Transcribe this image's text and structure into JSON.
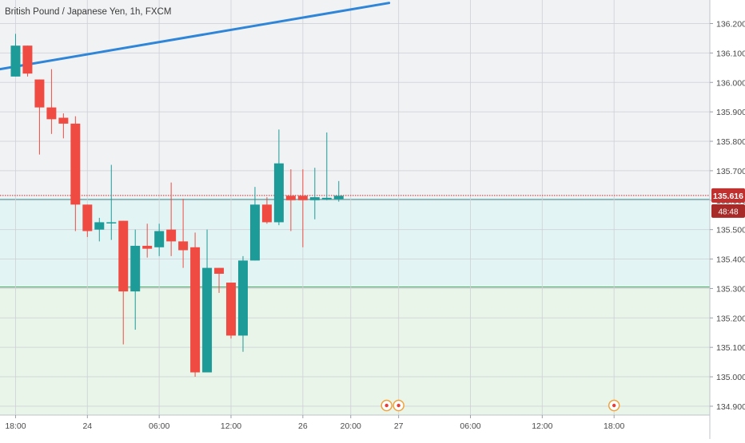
{
  "title": "British Pound / Japanese Yen, 1h, FXCM",
  "chart_data": {
    "type": "candlestick",
    "title": "British Pound / Japanese Yen, 1h, FXCM",
    "ylim": [
      134.87,
      136.28
    ],
    "x_range": [
      -1.3,
      58
    ],
    "grid": true,
    "y_ticks": [
      "136.200",
      "136.100",
      "136.000",
      "135.900",
      "135.800",
      "135.700",
      "135.600",
      "135.500",
      "135.400",
      "135.300",
      "135.200",
      "135.100",
      "135.000",
      "134.900"
    ],
    "y_tick_values": [
      136.2,
      136.1,
      136.0,
      135.9,
      135.8,
      135.7,
      135.6,
      135.5,
      135.4,
      135.3,
      135.2,
      135.1,
      135.0,
      134.9
    ],
    "x_ticks": [
      {
        "label": "18:00",
        "index": 0
      },
      {
        "label": "24",
        "index": 6
      },
      {
        "label": "06:00",
        "index": 12
      },
      {
        "label": "12:00",
        "index": 18
      },
      {
        "label": "26",
        "index": 24
      },
      {
        "label": "20:00",
        "index": 28
      },
      {
        "label": "27",
        "index": 32
      },
      {
        "label": "06:00",
        "index": 38
      },
      {
        "label": "12:00",
        "index": 44
      },
      {
        "label": "18:00",
        "index": 50
      }
    ],
    "candles": [
      {
        "o": 136.02,
        "h": 136.165,
        "l": 136.02,
        "c": 136.125
      },
      {
        "o": 136.125,
        "h": 136.125,
        "l": 136.02,
        "c": 136.03
      },
      {
        "o": 136.01,
        "h": 136.01,
        "l": 135.755,
        "c": 135.915
      },
      {
        "o": 135.915,
        "h": 136.045,
        "l": 135.825,
        "c": 135.875
      },
      {
        "o": 135.88,
        "h": 135.895,
        "l": 135.81,
        "c": 135.86
      },
      {
        "o": 135.86,
        "h": 135.885,
        "l": 135.495,
        "c": 135.585
      },
      {
        "o": 135.585,
        "h": 135.585,
        "l": 135.475,
        "c": 135.495
      },
      {
        "o": 135.5,
        "h": 135.54,
        "l": 135.46,
        "c": 135.525
      },
      {
        "o": 135.525,
        "h": 135.72,
        "l": 135.465,
        "c": 135.525
      },
      {
        "o": 135.53,
        "h": 135.53,
        "l": 135.11,
        "c": 135.29
      },
      {
        "o": 135.29,
        "h": 135.5,
        "l": 135.16,
        "c": 135.445
      },
      {
        "o": 135.445,
        "h": 135.52,
        "l": 135.405,
        "c": 135.435
      },
      {
        "o": 135.44,
        "h": 135.52,
        "l": 135.41,
        "c": 135.495
      },
      {
        "o": 135.5,
        "h": 135.66,
        "l": 135.41,
        "c": 135.46
      },
      {
        "o": 135.46,
        "h": 135.605,
        "l": 135.37,
        "c": 135.43
      },
      {
        "o": 135.44,
        "h": 135.49,
        "l": 135.0,
        "c": 135.015
      },
      {
        "o": 135.015,
        "h": 135.5,
        "l": 135.015,
        "c": 135.37
      },
      {
        "o": 135.37,
        "h": 135.37,
        "l": 135.285,
        "c": 135.35
      },
      {
        "o": 135.32,
        "h": 135.32,
        "l": 135.13,
        "c": 135.14
      },
      {
        "o": 135.14,
        "h": 135.41,
        "l": 135.085,
        "c": 135.395
      },
      {
        "o": 135.395,
        "h": 135.645,
        "l": 135.395,
        "c": 135.585
      },
      {
        "o": 135.585,
        "h": 135.61,
        "l": 135.52,
        "c": 135.525
      },
      {
        "o": 135.525,
        "h": 135.84,
        "l": 135.515,
        "c": 135.725
      },
      {
        "o": 135.615,
        "h": 135.705,
        "l": 135.495,
        "c": 135.6
      },
      {
        "o": 135.615,
        "h": 135.705,
        "l": 135.44,
        "c": 135.6
      },
      {
        "o": 135.6,
        "h": 135.71,
        "l": 135.535,
        "c": 135.61
      },
      {
        "o": 135.602,
        "h": 135.83,
        "l": 135.6,
        "c": 135.608
      },
      {
        "o": 135.604,
        "h": 135.665,
        "l": 135.595,
        "c": 135.615
      }
    ],
    "trendline": {
      "from": {
        "i": -1.3,
        "y": 136.045
      },
      "to": {
        "i": 31.2,
        "y": 136.27
      }
    },
    "current_price": {
      "value": 135.616,
      "label": "135.616",
      "color": "#c0302f"
    },
    "countdown": {
      "label": "48:48"
    },
    "zones": [
      {
        "from": 135.305,
        "to": 135.6025,
        "color": "#e3f4f4",
        "border": "#1f8a87"
      },
      {
        "from": 134.87,
        "to": 135.305,
        "color": "#e9f5e9",
        "border": "#3d9a4f"
      }
    ],
    "event_markers": [
      31.0,
      32.0,
      50.0
    ],
    "colors": {
      "up": "#1c9b98",
      "down": "#f04b42",
      "trendline": "#2f86d8"
    }
  }
}
